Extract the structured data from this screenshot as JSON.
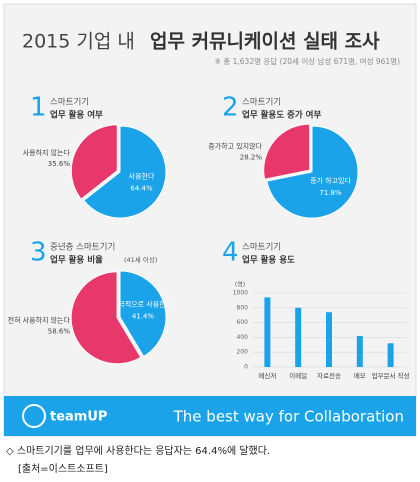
{
  "header": {
    "title_light": "2015 기업 내",
    "title_bold": "업무 커뮤니케이션 실태 조사",
    "subtitle": "※ 총 1,632명 응답 (20세 이상 남성 671명, 여성 961명)"
  },
  "chart_data": [
    {
      "type": "pie",
      "number": "1",
      "label": "스마트기기",
      "title": "업무 활용 여부",
      "categories": [
        "사용한다",
        "사용하지 않는다"
      ],
      "values": [
        64.4,
        35.6
      ],
      "value_labels": [
        "64.4%",
        "35.6%"
      ],
      "colors": [
        "#1aa3e8",
        "#e8386b"
      ]
    },
    {
      "type": "pie",
      "number": "2",
      "label": "스마트기기",
      "title": "업무 활용도 증가 여부",
      "categories": [
        "증가 하고있다",
        "증가하고 있지않다"
      ],
      "values": [
        71.8,
        28.2
      ],
      "value_labels": [
        "71.8%",
        "28.2%"
      ],
      "colors": [
        "#1aa3e8",
        "#e8386b"
      ]
    },
    {
      "type": "pie",
      "number": "3",
      "label": "중년층 스마트기기",
      "title": "업무 활용 비율",
      "note": "(41세 이상)",
      "categories": [
        "적극적으로 사용한다.",
        "전혀 사용하지 않는다"
      ],
      "values": [
        41.4,
        58.6
      ],
      "value_labels": [
        "41.4%",
        "58.6%"
      ],
      "colors": [
        "#1aa3e8",
        "#e8386b"
      ]
    },
    {
      "type": "bar",
      "number": "4",
      "label": "스마트기기",
      "title": "업무 활용 용도",
      "y_unit": "(명)",
      "categories": [
        "메신저",
        "이메일",
        "자료전송",
        "메모",
        "업무문서 작성"
      ],
      "values": [
        940,
        800,
        740,
        420,
        320
      ],
      "color": "#1aa3e8",
      "ylim": [
        0,
        1000
      ],
      "yticks": [
        0,
        200,
        400,
        600,
        800,
        1000
      ],
      "grid": true
    }
  ],
  "footer": {
    "brand": "teamUP",
    "slogan": "The best way for  Collaboration"
  },
  "caption": {
    "text": "◇ 스마트기기를 업무에 사용한다는 응답자는 64.4%에 달했다.",
    "source": "[출처=이스트소프트]"
  }
}
